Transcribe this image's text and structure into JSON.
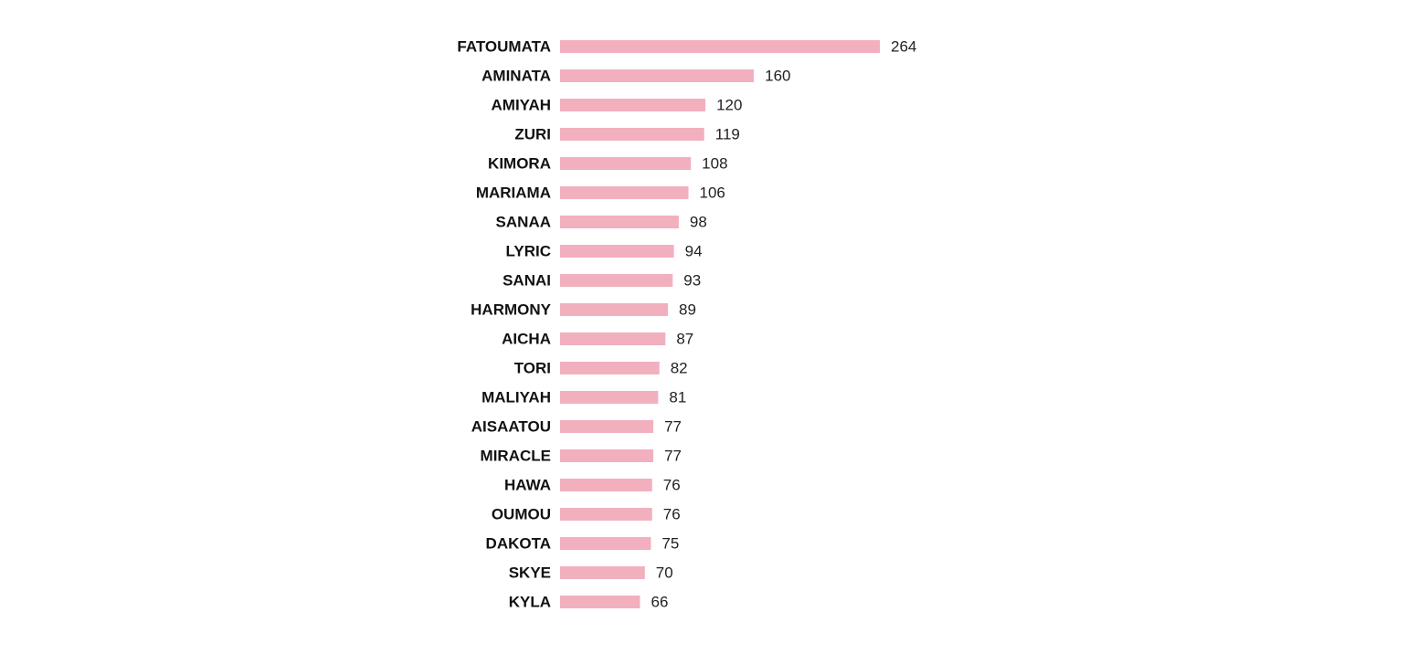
{
  "chart_data": {
    "type": "bar",
    "orientation": "horizontal",
    "categories": [
      "FATOUMATA",
      "AMINATA",
      "AMIYAH",
      "ZURI",
      "KIMORA",
      "MARIAMA",
      "SANAA",
      "LYRIC",
      "SANAI",
      "HARMONY",
      "AICHA",
      "TORI",
      "MALIYAH",
      "AISAATOU",
      "MIRACLE",
      "HAWA",
      "OUMOU",
      "DAKOTA",
      "SKYE",
      "KYLA"
    ],
    "values": [
      264,
      160,
      120,
      119,
      108,
      106,
      98,
      94,
      93,
      89,
      87,
      82,
      81,
      77,
      77,
      76,
      76,
      75,
      70,
      66
    ],
    "title": "",
    "xlabel": "",
    "ylabel": "",
    "grid": false,
    "legend": "none",
    "bar_color": "#f2b0be"
  }
}
